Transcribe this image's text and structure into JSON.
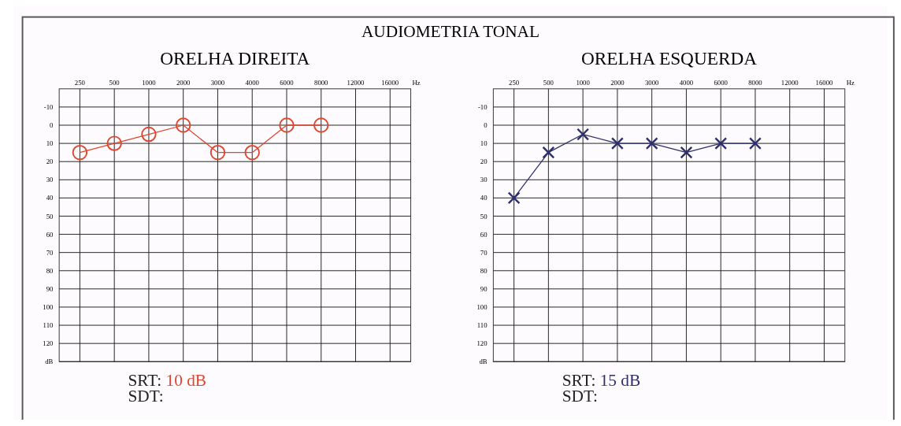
{
  "chart_data": [
    {
      "type": "line",
      "title": "AUDIOMETRIA TONAL",
      "subtitle": "ORELHA DIREITA",
      "xlabel": "Hz",
      "categories": [
        "250",
        "500",
        "1000",
        "2000",
        "3000",
        "4000",
        "6000",
        "8000",
        "12000",
        "16000"
      ],
      "series": [
        {
          "color": "#e0452f",
          "values": [
            15,
            10,
            5,
            0,
            15,
            15,
            0,
            0,
            null,
            null
          ]
        }
      ],
      "ylim": [
        130,
        -20
      ],
      "yticks": [
        -10,
        0,
        10,
        20,
        30,
        40,
        50,
        60,
        70,
        80,
        90,
        100,
        110,
        120,
        {
          "value": 130,
          "label": "dB"
        }
      ],
      "grid": true,
      "marker": "circle",
      "annotations": [
        "SRT: 10 dB",
        "SDT:"
      ]
    },
    {
      "type": "line",
      "subtitle": "ORELHA ESQUERDA",
      "xlabel": "Hz",
      "categories": [
        "250",
        "500",
        "1000",
        "2000",
        "3000",
        "4000",
        "6000",
        "8000",
        "12000",
        "16000"
      ],
      "series": [
        {
          "color": "#2e2f6b",
          "values": [
            40,
            15,
            5,
            10,
            10,
            15,
            10,
            10,
            null,
            null
          ]
        }
      ],
      "ylim": [
        130,
        -20
      ],
      "yticks": [
        -10,
        0,
        10,
        20,
        30,
        40,
        50,
        60,
        70,
        80,
        90,
        100,
        110,
        120,
        {
          "value": 130,
          "label": "dB"
        }
      ],
      "grid": true,
      "marker": "cross",
      "annotations": [
        "SRT: 15 dB",
        "SDT:"
      ]
    }
  ]
}
